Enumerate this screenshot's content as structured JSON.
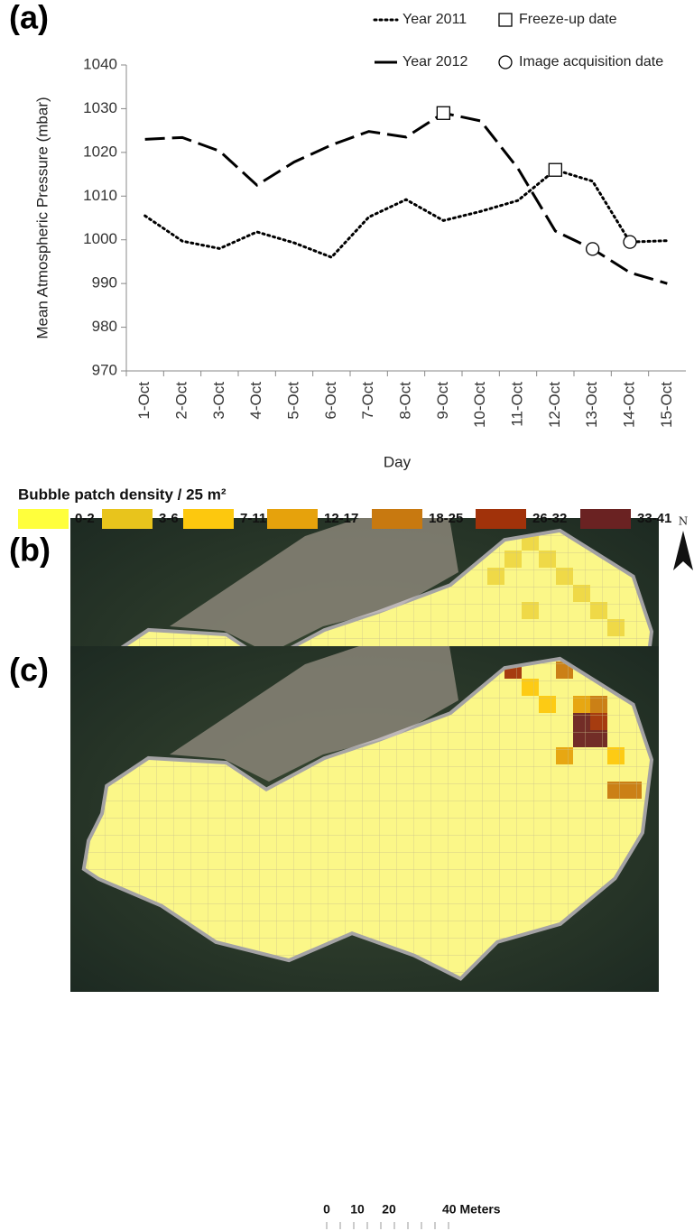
{
  "chart_data": {
    "type": "line",
    "panel_label": "(a)",
    "x_label": "Day",
    "y_label": "Mean Atmospheric Pressure (mbar)",
    "categories": [
      "1-Oct",
      "2-Oct",
      "3-Oct",
      "4-Oct",
      "5-Oct",
      "6-Oct",
      "7-Oct",
      "8-Oct",
      "9-Oct",
      "10-Oct",
      "11-Oct",
      "12-Oct",
      "13-Oct",
      "14-Oct",
      "15-Oct"
    ],
    "series": [
      {
        "name": "Year 2011",
        "color": "#000000",
        "style": "dotted",
        "values": [
          1005.5,
          999.7,
          998,
          1001.8,
          999.3,
          996,
          1005.2,
          1009.2,
          1004.4,
          1006.5,
          1009,
          1016,
          1013.4,
          999.5,
          999.8
        ],
        "freeze_up": "12-Oct",
        "image_acquisition": "14-Oct"
      },
      {
        "name": "Year 2012",
        "color": "#000000",
        "style": "dashed",
        "values": [
          1023,
          1023.4,
          1020.3,
          1012.5,
          1017.8,
          1021.7,
          1024.8,
          1023.5,
          1029,
          1027.2,
          1016.3,
          1002,
          997.9,
          992.5,
          990
        ],
        "freeze_up": "9-Oct",
        "image_acquisition": "13-Oct"
      }
    ],
    "marker_legend": {
      "freeze_up": "Freeze-up date",
      "image_acquisition": "Image acquisition date"
    },
    "ylim": [
      970,
      1040
    ],
    "yticks": [
      970,
      980,
      990,
      1000,
      1010,
      1020,
      1030,
      1040
    ],
    "grid": false
  },
  "density_legend": {
    "title": "Bubble patch density / 25 m²",
    "classes": [
      {
        "label": "0-2",
        "color": "#ffff3c"
      },
      {
        "label": "3-6",
        "color": "#e8c41c"
      },
      {
        "label": "7-11",
        "color": "#fdc80e"
      },
      {
        "label": "12-17",
        "color": "#e6a20c"
      },
      {
        "label": "18-25",
        "color": "#c87910"
      },
      {
        "label": "26-32",
        "color": "#a1320a"
      },
      {
        "label": "33-41",
        "color": "#6a2222"
      }
    ]
  },
  "maps": [
    {
      "panel_label": "(b)"
    },
    {
      "panel_label": "(c)"
    }
  ],
  "north_label": "N",
  "scale_bar": [
    "0",
    "10",
    "20",
    "40 Meters"
  ]
}
